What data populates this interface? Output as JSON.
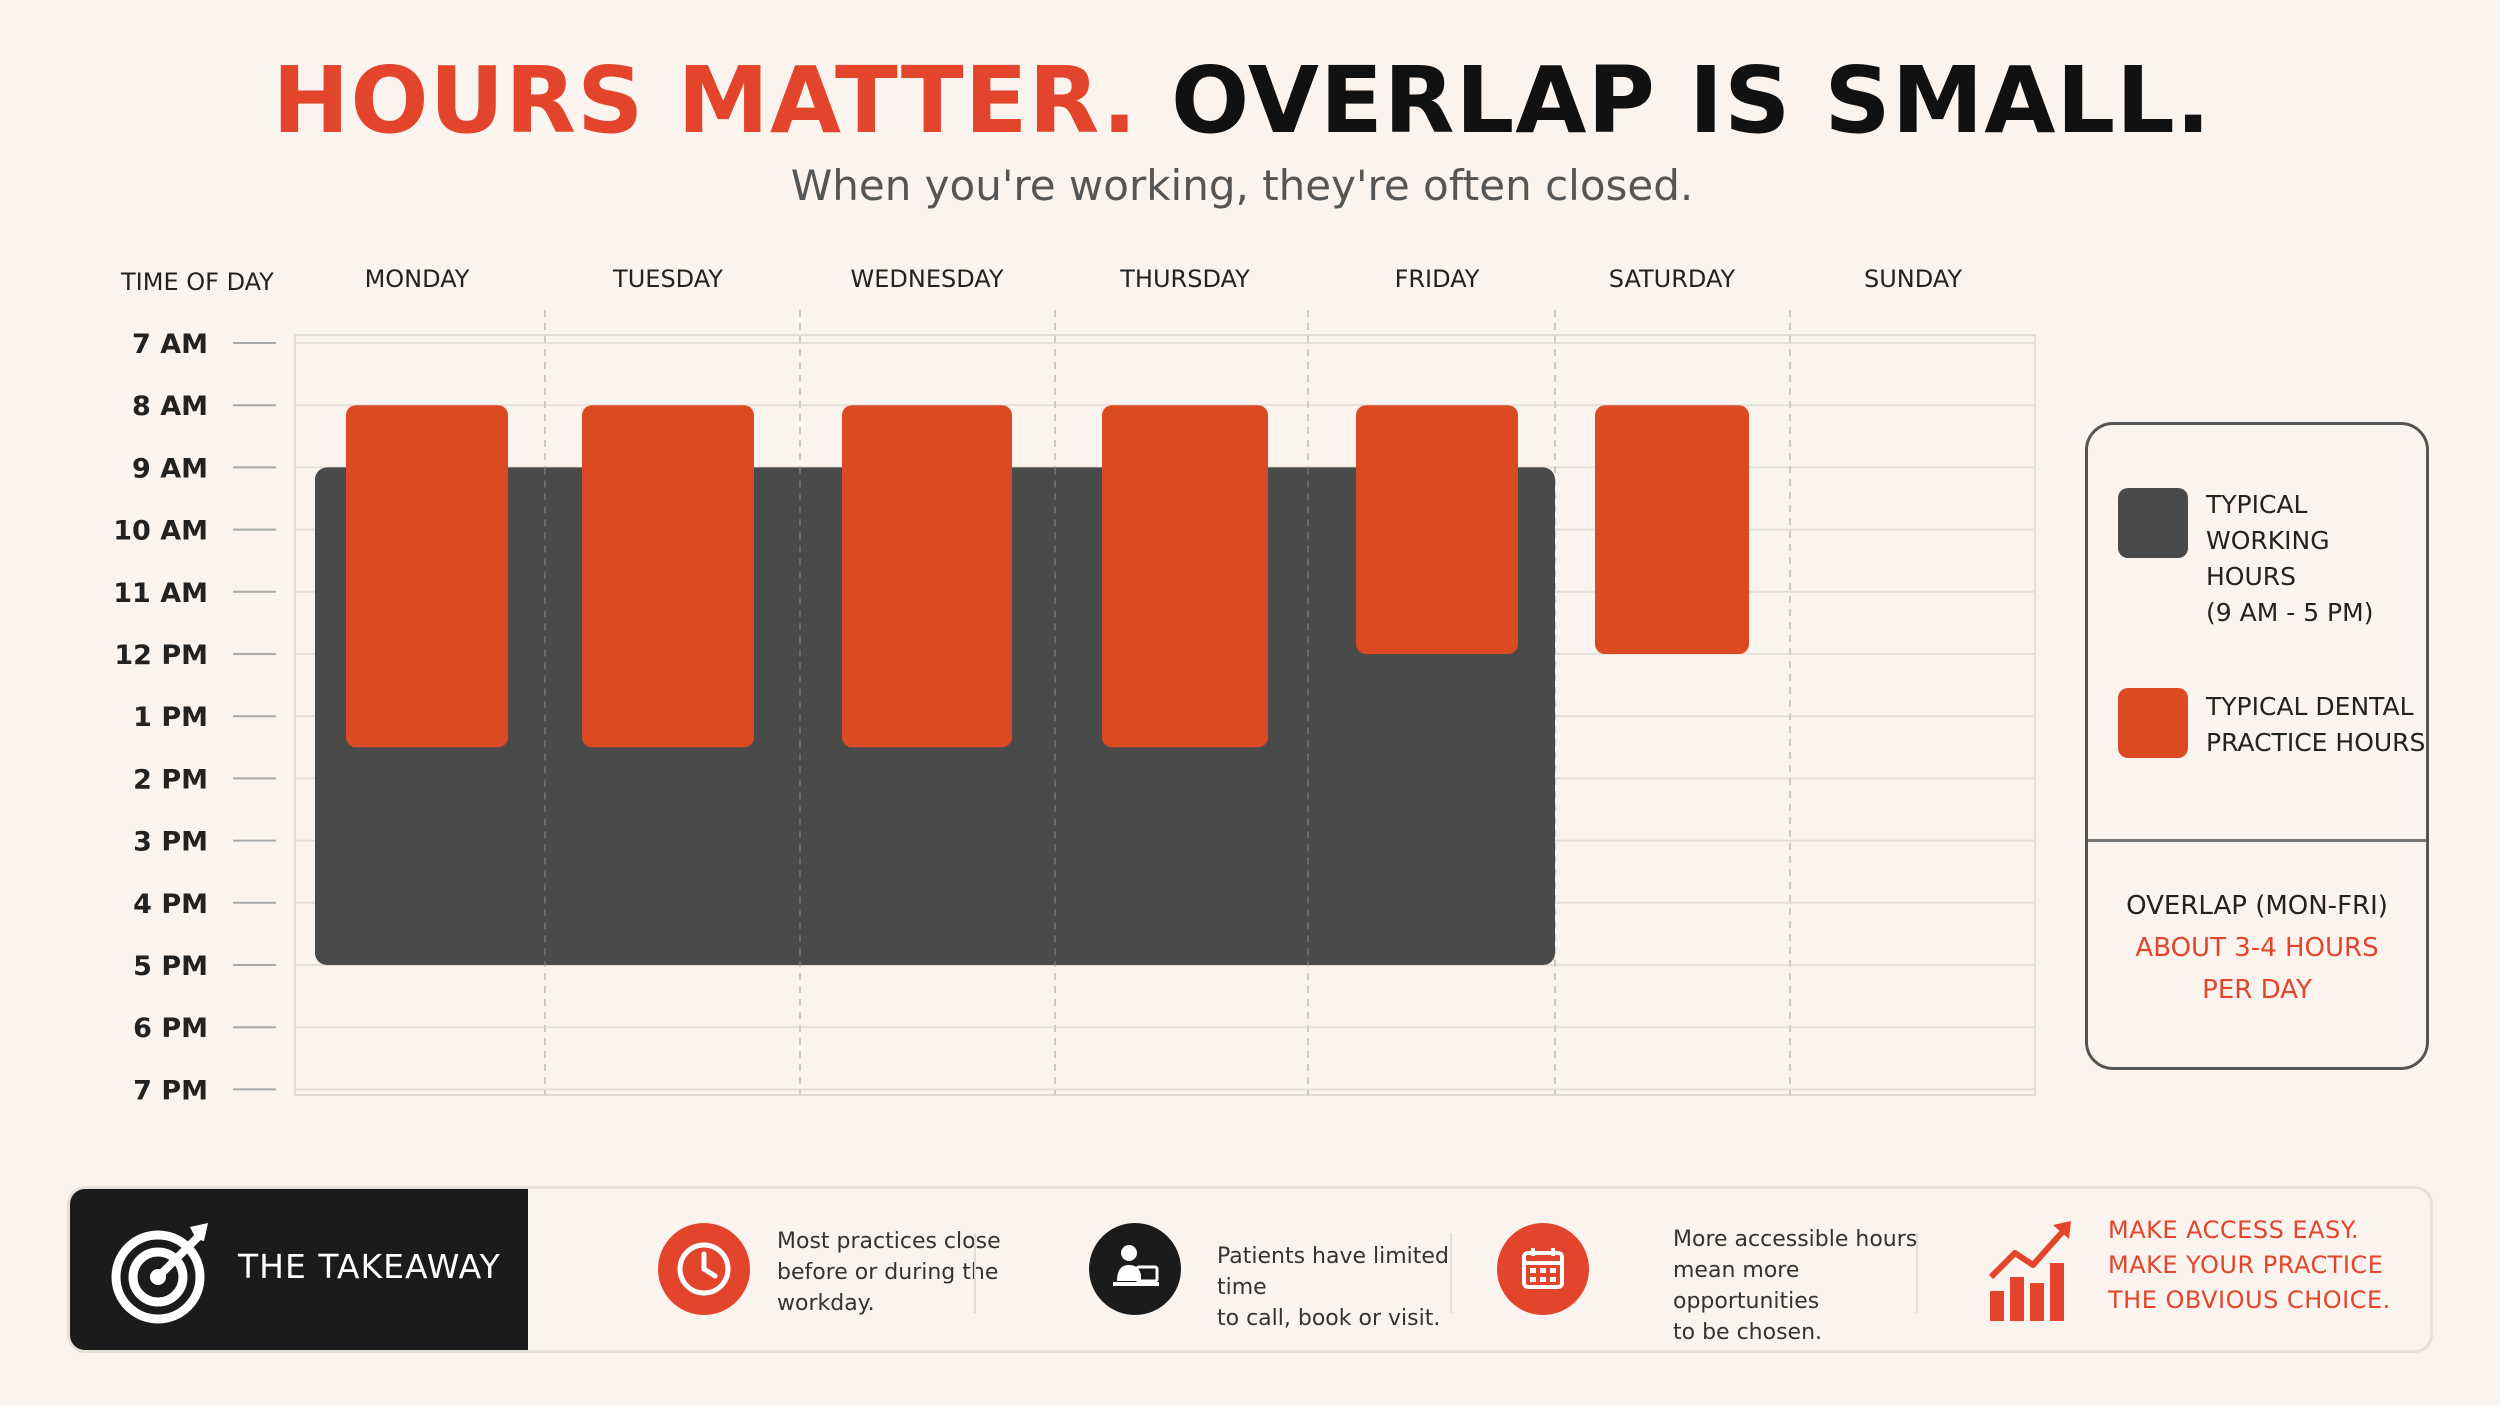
{
  "header": {
    "title_part1": "HOURS MATTER.",
    "title_part2": "OVERLAP IS SMALL.",
    "subtitle": "When you're working, they're often closed."
  },
  "colors": {
    "accent": "#e3452c",
    "dental_bar": "#dc4a22",
    "working_block": "#4a4a4a",
    "background": "#fbf4ee"
  },
  "chart_data": {
    "type": "bar",
    "subtype": "floating-range",
    "y_axis_title": "TIME OF DAY",
    "time_labels": [
      "7 AM",
      "8 AM",
      "9 AM",
      "10 AM",
      "11 AM",
      "12 PM",
      "1 PM",
      "2 PM",
      "3 PM",
      "4 PM",
      "5 PM",
      "6 PM",
      "7 PM"
    ],
    "ylim": [
      7,
      19
    ],
    "categories": [
      "MONDAY",
      "TUESDAY",
      "WEDNESDAY",
      "THURSDAY",
      "FRIDAY",
      "SATURDAY",
      "SUNDAY"
    ],
    "working_hours": {
      "label": "TYPICAL WORKING HOURS (9 AM - 5 PM)",
      "start": 9,
      "end": 17,
      "days": [
        "MONDAY",
        "TUESDAY",
        "WEDNESDAY",
        "THURSDAY",
        "FRIDAY"
      ]
    },
    "dental_hours": [
      {
        "day": "MONDAY",
        "start": 8,
        "end": 13.5
      },
      {
        "day": "TUESDAY",
        "start": 8,
        "end": 13.5
      },
      {
        "day": "WEDNESDAY",
        "start": 8,
        "end": 13.5
      },
      {
        "day": "THURSDAY",
        "start": 8,
        "end": 13.5
      },
      {
        "day": "FRIDAY",
        "start": 8,
        "end": 12
      },
      {
        "day": "SATURDAY",
        "start": 8,
        "end": 12
      }
    ],
    "grid": true,
    "legend_position": "right"
  },
  "legend": {
    "working_lines": [
      "TYPICAL",
      "WORKING HOURS",
      "(9 AM - 5 PM)"
    ],
    "dental_lines": [
      "TYPICAL DENTAL",
      "PRACTICE HOURS"
    ],
    "overlap_title": "OVERLAP (MON-FRI)",
    "overlap_value_lines": [
      "ABOUT 3-4 HOURS",
      "PER DAY"
    ]
  },
  "takeaway": {
    "heading": "THE TAKEAWAY",
    "items": [
      {
        "icon": "clock-icon",
        "lines": [
          "Most practices close",
          "before or during the",
          "workday."
        ]
      },
      {
        "icon": "person-at-laptop-icon",
        "lines": [
          "Patients have limited time",
          "to call, book or visit."
        ]
      },
      {
        "icon": "calendar-icon",
        "lines": [
          "More accessible hours",
          "mean more opportunities",
          "to be chosen."
        ]
      }
    ],
    "cta_icon": "growth-chart-icon",
    "cta_lines": [
      "MAKE ACCESS EASY.",
      "MAKE YOUR PRACTICE",
      "THE OBVIOUS CHOICE."
    ]
  }
}
